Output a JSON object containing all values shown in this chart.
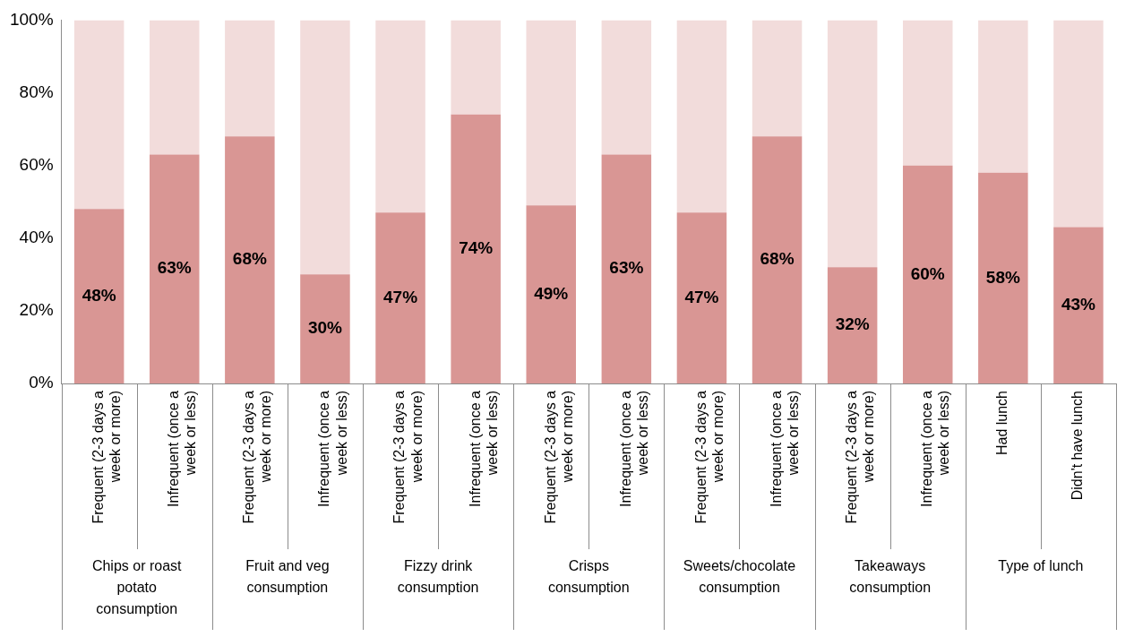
{
  "chart_data": {
    "type": "bar",
    "stacked": true,
    "categories": [
      "Frequent (2-3 days a week or more)",
      "Infrequent (once a week or less)",
      "Frequent (2-3 days a week or more)",
      "Infrequent (once a week or less)",
      "Frequent (2-3 days a week or more)",
      "Infrequent (once a week or less)",
      "Frequent (2-3 days a week or more)",
      "Infrequent (once a week or less)",
      "Frequent (2-3 days a week or more)",
      "Infrequent (once a week or less)",
      "Frequent (2-3 days a week or more)",
      "Infrequent (once a week or less)",
      "Had lunch",
      "Didn't have lunch"
    ],
    "series": [
      {
        "color": "#d99694",
        "values": [
          48,
          63,
          68,
          30,
          47,
          74,
          49,
          63,
          47,
          68,
          32,
          60,
          58,
          43
        ],
        "value_labels": [
          "48%",
          "63%",
          "68%",
          "30%",
          "47%",
          "74%",
          "49%",
          "63%",
          "47%",
          "68%",
          "32%",
          "60%",
          "58%",
          "43%"
        ]
      },
      {
        "color": "#f2dcdb",
        "values": [
          52,
          37,
          32,
          70,
          53,
          26,
          51,
          37,
          53,
          32,
          68,
          40,
          42,
          57
        ]
      }
    ],
    "annotations": [
      "Chips or roast potato consumption",
      "Fruit and veg consumption",
      "Fizzy drink consumption",
      "Crisps consumption",
      "Sweets/chocolate consumption",
      "Takeaways consumption",
      "Type of lunch"
    ],
    "ylim": [
      0,
      100
    ],
    "yticks": [
      {
        "value": 0,
        "label": "0%"
      },
      {
        "value": 20,
        "label": "20%"
      },
      {
        "value": 40,
        "label": "40%"
      },
      {
        "value": 60,
        "label": "60%"
      },
      {
        "value": 80,
        "label": "80%"
      },
      {
        "value": 100,
        "label": "100%"
      }
    ],
    "grid": false,
    "legend": false
  }
}
